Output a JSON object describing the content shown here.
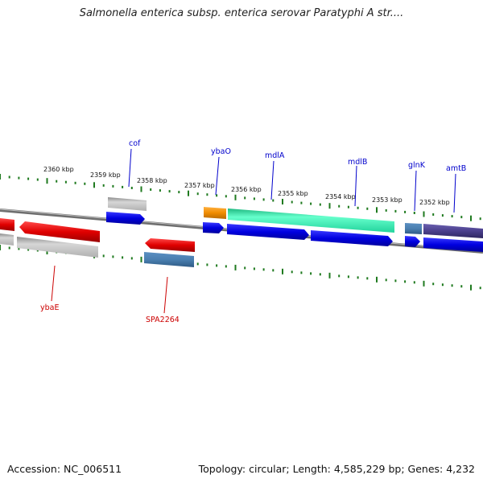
{
  "title": "Salmonella enterica subsp. enterica serovar Paratyphi A str....",
  "accession_label": "Accession: NC_006511",
  "summary_label": "Topology: circular; Length: 4,585,229 bp; Genes: 4,232",
  "colors": {
    "backbone": "#888888",
    "tick": "#1f7a1f",
    "forward_cds": "#0000e0",
    "reverse_cds": "#e00000",
    "gene_gray": "#b8b8b8",
    "pseudo_teal": "#4a7fb0",
    "orange": "#f08c00",
    "aquamarine": "#33f0b0",
    "purple": "#4a3f8c",
    "label_top": "#0000cc",
    "label_bottom": "#cc0000"
  },
  "scale_labels": [
    "2360 kbp",
    "2359 kbp",
    "2358 kbp",
    "2357 kbp",
    "2356 kbp",
    "2355 kbp",
    "2354 kbp",
    "2353 kbp",
    "2352 kbp"
  ],
  "gene_labels_top": [
    "cof",
    "ybaO",
    "mdlA",
    "mdlB",
    "glnK",
    "amtB"
  ],
  "gene_labels_bottom": [
    "ybaE",
    "SPA2264"
  ]
}
